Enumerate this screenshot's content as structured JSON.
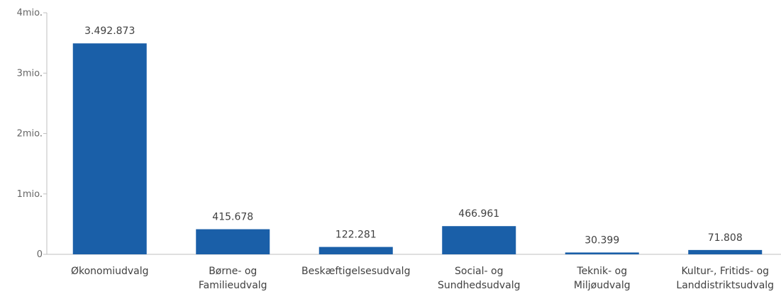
{
  "chart_data": {
    "type": "bar",
    "title": "",
    "xlabel": "",
    "ylabel": "",
    "categories": [
      "Økonomiudvalg",
      "Børne- og Familieudvalg",
      "Beskæftigelsesudvalg",
      "Social- og Sundhedsudvalg",
      "Teknik- og Miljøudvalg",
      "Kultur-, Fritids- og Landdistriktsudvalg"
    ],
    "category_lines": [
      [
        "Økonomiudvalg"
      ],
      [
        "Børne- og",
        "Familieudvalg"
      ],
      [
        "Beskæftigelsesudvalg"
      ],
      [
        "Social- og",
        "Sundhedsudvalg"
      ],
      [
        "Teknik- og",
        "Miljøudvalg"
      ],
      [
        "Kultur-, Fritids- og",
        "Landdistriktsudvalg"
      ]
    ],
    "values": [
      3492873,
      415678,
      122281,
      466961,
      30399,
      71808
    ],
    "data_labels": [
      "3.492.873",
      "415.678",
      "122.281",
      "466.961",
      "30.399",
      "71.808"
    ],
    "ylim": [
      0,
      4000000
    ],
    "yticks": [
      0,
      1000000,
      2000000,
      3000000,
      4000000
    ],
    "ytick_labels": [
      "0",
      "1mio.",
      "2mio.",
      "3mio.",
      "4mio."
    ],
    "grid": false,
    "legend": "none",
    "bar_color": "#1a5fa8"
  }
}
